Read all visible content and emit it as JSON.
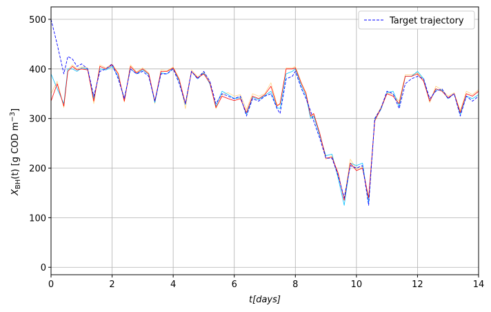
{
  "chart_data": {
    "type": "line",
    "title": "",
    "xlabel": "t[days]",
    "ylabel": "X_BH(t) [g COD m^-3]",
    "xlim": [
      0,
      14
    ],
    "ylim": [
      -15,
      525
    ],
    "xticks": [
      0,
      2,
      4,
      6,
      8,
      10,
      12,
      14
    ],
    "yticks": [
      0,
      100,
      200,
      300,
      400,
      500
    ],
    "grid": true,
    "legend": {
      "placement": "top-right",
      "entries": [
        {
          "label": "Target trajectory",
          "style": "dashed",
          "color": "#0000ff"
        }
      ]
    },
    "series": [
      {
        "name": "Target trajectory",
        "color": "#0000ff",
        "style": "dashed",
        "x": [
          0,
          0.2,
          0.42,
          0.55,
          0.7,
          0.85,
          1.0,
          1.2,
          1.4,
          1.6,
          1.8,
          2.0,
          2.2,
          2.4,
          2.6,
          2.8,
          3.0,
          3.2,
          3.4,
          3.6,
          3.8,
          4.0,
          4.2,
          4.4,
          4.6,
          4.8,
          5.0,
          5.2,
          5.4,
          5.6,
          5.8,
          6.0,
          6.2,
          6.4,
          6.6,
          6.8,
          7.0,
          7.2,
          7.4,
          7.5,
          7.7,
          7.9,
          8.0,
          8.2,
          8.35,
          8.5,
          8.6,
          8.8,
          9.0,
          9.2,
          9.4,
          9.6,
          9.8,
          10.0,
          10.2,
          10.4,
          10.6,
          10.8,
          11.0,
          11.2,
          11.4,
          11.6,
          11.8,
          12.0,
          12.2,
          12.4,
          12.6,
          12.8,
          13.0,
          13.2,
          13.4,
          13.6,
          13.8,
          14.0
        ],
        "values": [
          500,
          450,
          390,
          425,
          420,
          405,
          410,
          400,
          345,
          395,
          400,
          410,
          380,
          340,
          400,
          390,
          395,
          385,
          335,
          390,
          390,
          400,
          370,
          330,
          395,
          380,
          395,
          375,
          330,
          350,
          345,
          340,
          345,
          305,
          340,
          335,
          345,
          350,
          320,
          310,
          380,
          385,
          395,
          360,
          340,
          315,
          295,
          260,
          220,
          220,
          185,
          140,
          205,
          200,
          205,
          125,
          300,
          320,
          355,
          350,
          320,
          370,
          380,
          385,
          380,
          340,
          355,
          360,
          340,
          350,
          305,
          345,
          335,
          345
        ]
      },
      {
        "name": "",
        "color": "#ff0000",
        "style": "solid",
        "x": [
          0,
          0.2,
          0.42,
          0.55,
          0.7,
          0.85,
          1.0,
          1.2,
          1.4,
          1.6,
          1.8,
          2.0,
          2.2,
          2.4,
          2.6,
          2.8,
          3.0,
          3.2,
          3.4,
          3.6,
          3.8,
          4.0,
          4.2,
          4.4,
          4.6,
          4.8,
          5.0,
          5.2,
          5.4,
          5.6,
          5.8,
          6.0,
          6.2,
          6.4,
          6.6,
          6.8,
          7.0,
          7.2,
          7.4,
          7.5,
          7.7,
          7.9,
          8.0,
          8.2,
          8.35,
          8.5,
          8.6,
          8.8,
          9.0,
          9.2,
          9.4,
          9.6,
          9.8,
          10.0,
          10.2,
          10.4,
          10.6,
          10.8,
          11.0,
          11.2,
          11.4,
          11.6,
          11.8,
          12.0,
          12.2,
          12.4,
          12.6,
          12.8,
          13.0,
          13.2,
          13.4,
          13.6,
          13.8,
          14.0
        ],
        "values": [
          335,
          370,
          325,
          395,
          405,
          398,
          400,
          398,
          335,
          405,
          400,
          408,
          390,
          335,
          405,
          392,
          400,
          390,
          335,
          395,
          395,
          402,
          378,
          330,
          395,
          382,
          390,
          372,
          322,
          345,
          340,
          336,
          340,
          312,
          345,
          340,
          348,
          365,
          325,
          330,
          400,
          400,
          402,
          370,
          350,
          305,
          310,
          270,
          220,
          222,
          190,
          135,
          210,
          195,
          200,
          140,
          295,
          320,
          350,
          345,
          330,
          385,
          385,
          390,
          375,
          335,
          360,
          355,
          342,
          350,
          312,
          350,
          345,
          355
        ]
      },
      {
        "name": "",
        "color": "#00bfff",
        "style": "solid",
        "x": [
          0,
          0.2,
          0.42,
          0.55,
          0.7,
          0.85,
          1.0,
          1.2,
          1.4,
          1.6,
          1.8,
          2.0,
          2.2,
          2.4,
          2.6,
          2.8,
          3.0,
          3.2,
          3.4,
          3.6,
          3.8,
          4.0,
          4.2,
          4.4,
          4.6,
          4.8,
          5.0,
          5.2,
          5.4,
          5.6,
          5.8,
          6.0,
          6.2,
          6.4,
          6.6,
          6.8,
          7.0,
          7.2,
          7.4,
          7.5,
          7.7,
          7.9,
          8.0,
          8.2,
          8.35,
          8.5,
          8.6,
          8.8,
          9.0,
          9.2,
          9.4,
          9.6,
          9.8,
          10.0,
          10.2,
          10.4,
          10.6,
          10.8,
          11.0,
          11.2,
          11.4,
          11.6,
          11.8,
          12.0,
          12.2,
          12.4,
          12.6,
          12.8,
          13.0,
          13.2,
          13.4,
          13.6,
          13.8,
          14.0
        ],
        "values": [
          390,
          360,
          330,
          400,
          400,
          395,
          402,
          400,
          340,
          400,
          398,
          405,
          385,
          340,
          400,
          390,
          398,
          388,
          332,
          392,
          390,
          402,
          375,
          328,
          395,
          380,
          392,
          370,
          325,
          355,
          348,
          340,
          342,
          308,
          343,
          338,
          346,
          355,
          322,
          320,
          390,
          395,
          400,
          365,
          345,
          300,
          305,
          265,
          225,
          228,
          180,
          125,
          210,
          205,
          210,
          130,
          298,
          318,
          352,
          355,
          325,
          385,
          385,
          395,
          380,
          335,
          358,
          357,
          340,
          350,
          308,
          345,
          340,
          348
        ]
      },
      {
        "name": "",
        "color": "#ffd280",
        "style": "solid",
        "x": [
          0,
          0.2,
          0.42,
          0.55,
          0.7,
          0.85,
          1.0,
          1.2,
          1.4,
          1.6,
          1.8,
          2.0,
          2.2,
          2.4,
          2.6,
          2.8,
          3.0,
          3.2,
          3.4,
          3.6,
          3.8,
          4.0,
          4.2,
          4.4,
          4.6,
          4.8,
          5.0,
          5.2,
          5.4,
          5.6,
          5.8,
          6.0,
          6.2,
          6.4,
          6.6,
          6.8,
          7.0,
          7.2,
          7.4,
          7.5,
          7.7,
          7.9,
          8.0,
          8.2,
          8.35,
          8.5,
          8.6,
          8.8,
          9.0,
          9.2,
          9.4,
          9.6,
          9.8,
          10.0,
          10.2,
          10.4,
          10.6,
          10.8,
          11.0,
          11.2,
          11.4,
          11.6,
          11.8,
          12.0,
          12.2,
          12.4,
          12.6,
          12.8,
          13.0,
          13.2,
          13.4,
          13.6,
          13.8,
          14.0
        ],
        "values": [
          350,
          375,
          322,
          398,
          408,
          400,
          404,
          402,
          330,
          408,
          402,
          410,
          392,
          333,
          408,
          394,
          402,
          392,
          330,
          398,
          396,
          404,
          380,
          320,
          398,
          384,
          394,
          375,
          320,
          348,
          352,
          345,
          348,
          318,
          350,
          345,
          350,
          372,
          328,
          328,
          402,
          402,
          405,
          372,
          352,
          302,
          308,
          268,
          218,
          225,
          185,
          138,
          218,
          198,
          202,
          135,
          300,
          322,
          352,
          348,
          335,
          388,
          388,
          392,
          378,
          332,
          365,
          358,
          345,
          352,
          315,
          355,
          348,
          358
        ]
      }
    ]
  }
}
